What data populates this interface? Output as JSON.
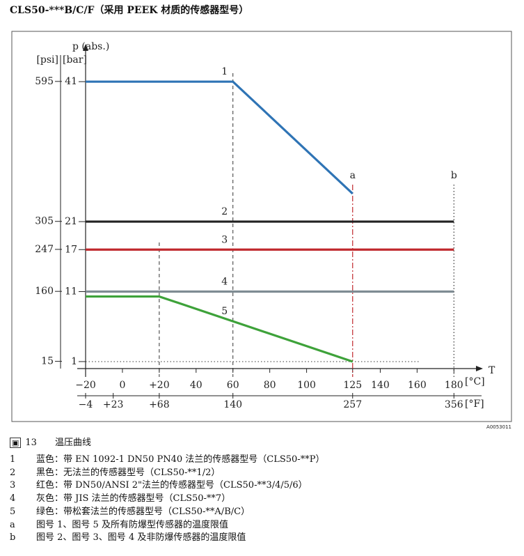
{
  "title": "CLS50-***B/C/F（采用 PEEK 材质的传感器型号）",
  "chart_data": {
    "type": "line",
    "y_label": "p (abs.)",
    "y_unit": "[bar]",
    "y2_unit": "[psi]",
    "x_label": "T",
    "x_unit": "[°C]",
    "x2_unit": "[°F]",
    "xlim": [
      -20,
      195
    ],
    "ylim": [
      0,
      45.6
    ],
    "x2lim": [
      -4,
      383
    ],
    "y2lim": [
      0,
      661.2
    ],
    "xticks": [
      {
        "value": -20,
        "label": "−20"
      },
      0,
      {
        "value": 20,
        "label": "+20"
      },
      40,
      60,
      80,
      100,
      125,
      140,
      160,
      180
    ],
    "x2ticks": [
      {
        "value": -4,
        "label": "−4"
      },
      {
        "value": 23,
        "label": "+23"
      },
      {
        "value": 68,
        "label": "+68"
      },
      140,
      257,
      356
    ],
    "yticks": [
      1,
      11,
      17,
      21,
      41
    ],
    "y2ticks": [
      15,
      160,
      247,
      305,
      595
    ],
    "series": [
      {
        "name": "1",
        "color": "#2f74b5",
        "x": [
          -20,
          60,
          125
        ],
        "values": [
          41,
          41,
          25
        ]
      },
      {
        "name": "2",
        "color": "#222222",
        "x": [
          -20,
          180
        ],
        "values": [
          21,
          21
        ]
      },
      {
        "name": "3",
        "color": "#c0282d",
        "x": [
          -20,
          180
        ],
        "values": [
          17,
          17
        ]
      },
      {
        "name": "4",
        "color": "#7f8c93",
        "x": [
          -20,
          180
        ],
        "values": [
          11,
          11
        ]
      },
      {
        "name": "5",
        "color": "#3ea23a",
        "x": [
          -20,
          20,
          125
        ],
        "values": [
          10.3,
          10.3,
          1
        ]
      }
    ],
    "reference_lines": [
      {
        "x": 20,
        "style": "dashed",
        "color": "#333333"
      },
      {
        "x": 60,
        "style": "dashed",
        "color": "#333333"
      },
      {
        "x": 125,
        "label": "a",
        "style": "dashdot",
        "color": "#c0282d"
      },
      {
        "x": 180,
        "label": "b",
        "style": "dotted",
        "color": "#333333"
      }
    ],
    "figure_code": "A0053011"
  },
  "caption": {
    "number": "13",
    "text": "温压曲线"
  },
  "notes": [
    {
      "key": "1",
      "text": "蓝色：带 EN 1092-1 DN50 PN40 法兰的传感器型号（CLS50-**P）"
    },
    {
      "key": "2",
      "text": "黑色：无法兰的传感器型号（CLS50-**1/2）"
    },
    {
      "key": "3",
      "text": "红色：带 DN50/ANSI 2\"法兰的传感器型号（CLS50-**3/4/5/6）"
    },
    {
      "key": "4",
      "text": "灰色：带 JIS 法兰的传感器型号（CLS50-**7）"
    },
    {
      "key": "5",
      "text": "绿色：带松套法兰的传感器型号（CLS50-**A/B/C）"
    },
    {
      "key": "a",
      "text": "图号 1、图号 5 及所有防爆型传感器的温度限值"
    },
    {
      "key": "b",
      "text": "图号 2、图号 3、图号 4 及非防爆传感器的温度限值"
    }
  ]
}
